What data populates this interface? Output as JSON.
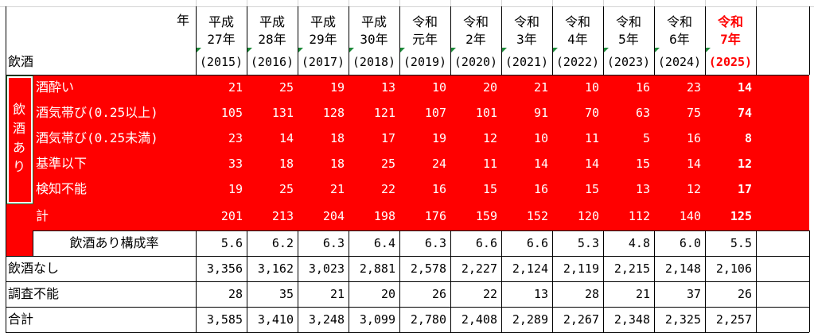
{
  "colors": {
    "red_band": "#ff0000",
    "highlight_text": "#ff0000",
    "grid_light": "#d4d4d4",
    "border": "#000000",
    "cell_marker": "#1e8b3a",
    "row_text_on_red": "#ffffff"
  },
  "header": {
    "corner_year_label": "年",
    "corner_category_label": "飲酒",
    "columns": [
      {
        "era": "平成",
        "year": "27年",
        "western": "(2015)",
        "highlight": false
      },
      {
        "era": "平成",
        "year": "28年",
        "western": "(2016)",
        "highlight": false
      },
      {
        "era": "平成",
        "year": "29年",
        "western": "(2017)",
        "highlight": false
      },
      {
        "era": "平成",
        "year": "30年",
        "western": "(2018)",
        "highlight": false
      },
      {
        "era": "令和",
        "year": "元年",
        "western": "(2019)",
        "highlight": false
      },
      {
        "era": "令和",
        "year": "2年",
        "western": "(2020)",
        "highlight": false
      },
      {
        "era": "令和",
        "year": "3年",
        "western": "(2021)",
        "highlight": false
      },
      {
        "era": "令和",
        "year": "4年",
        "western": "(2022)",
        "highlight": false
      },
      {
        "era": "令和",
        "year": "5年",
        "western": "(2023)",
        "highlight": false
      },
      {
        "era": "令和",
        "year": "6年",
        "western": "(2024)",
        "highlight": false
      },
      {
        "era": "令和",
        "year": "7年",
        "western": "(2025)",
        "highlight": true
      }
    ]
  },
  "group_label": [
    "飲",
    "酒",
    "あ",
    "り"
  ],
  "rows": [
    {
      "label": "酒酔い",
      "values": [
        "21",
        "25",
        "19",
        "13",
        "10",
        "20",
        "21",
        "10",
        "16",
        "23",
        "14"
      ]
    },
    {
      "label": "酒気帯び(0.25以上)",
      "values": [
        "105",
        "131",
        "128",
        "121",
        "107",
        "101",
        "91",
        "70",
        "63",
        "75",
        "74"
      ]
    },
    {
      "label": "酒気帯び(0.25未満)",
      "values": [
        "23",
        "14",
        "18",
        "17",
        "19",
        "12",
        "10",
        "11",
        "5",
        "16",
        "8"
      ]
    },
    {
      "label": "基準以下",
      "values": [
        "33",
        "18",
        "18",
        "25",
        "24",
        "11",
        "14",
        "14",
        "15",
        "14",
        "12"
      ]
    },
    {
      "label": "検知不能",
      "values": [
        "19",
        "25",
        "21",
        "22",
        "16",
        "15",
        "16",
        "15",
        "13",
        "12",
        "17"
      ]
    }
  ],
  "subtotal": {
    "label": "計",
    "values": [
      "201",
      "213",
      "204",
      "198",
      "176",
      "159",
      "152",
      "120",
      "112",
      "140",
      "125"
    ]
  },
  "ratio": {
    "label": "飲酒あり構成率",
    "values": [
      "5.6",
      "6.2",
      "6.3",
      "6.4",
      "6.3",
      "6.6",
      "6.6",
      "5.3",
      "4.8",
      "6.0",
      "5.5"
    ]
  },
  "no_drink": {
    "label": "飲酒なし",
    "values": [
      "3,356",
      "3,162",
      "3,023",
      "2,881",
      "2,578",
      "2,227",
      "2,124",
      "2,119",
      "2,215",
      "2,148",
      "2,106"
    ]
  },
  "unknown": {
    "label": "調査不能",
    "values": [
      "28",
      "35",
      "21",
      "20",
      "26",
      "22",
      "13",
      "28",
      "21",
      "37",
      "26"
    ]
  },
  "total": {
    "label": "合計",
    "values": [
      "3,585",
      "3,410",
      "3,248",
      "3,099",
      "2,780",
      "2,408",
      "2,289",
      "2,267",
      "2,348",
      "2,325",
      "2,257"
    ]
  }
}
